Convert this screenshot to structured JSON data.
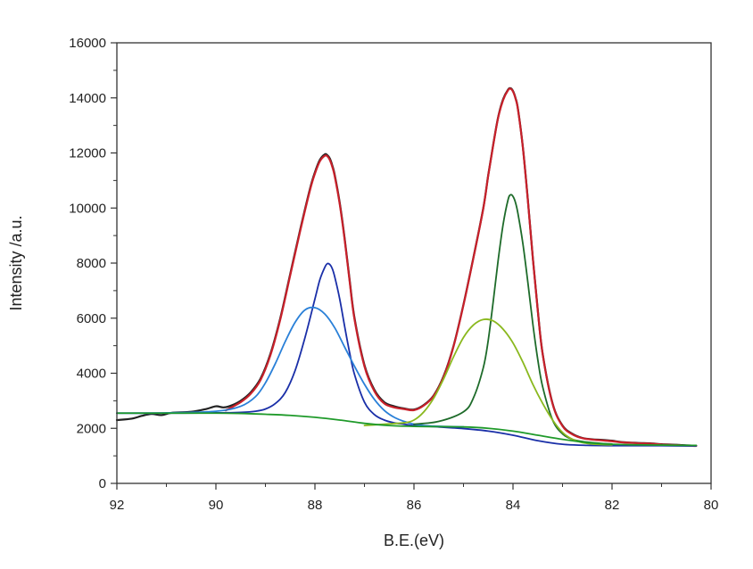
{
  "chart_data": {
    "type": "line",
    "title": "",
    "xlabel": "B.E.(eV)",
    "ylabel": "Intensity /a.u.",
    "xlim": [
      92,
      80
    ],
    "ylim": [
      0,
      16000
    ],
    "x_ticks": [
      92,
      90,
      88,
      86,
      84,
      82,
      80
    ],
    "y_ticks": [
      0,
      2000,
      4000,
      6000,
      8000,
      10000,
      12000,
      14000,
      16000
    ],
    "x_tick_labels": [
      "92",
      "90",
      "88",
      "86",
      "84",
      "82",
      "80"
    ],
    "y_tick_labels": [
      "0",
      "2000",
      "4000",
      "6000",
      "8000",
      "10000",
      "12000",
      "14000",
      "16000"
    ],
    "grid": false,
    "legend": "none",
    "series": [
      {
        "name": "raw-data",
        "color": "#222222",
        "x": [
          92.0,
          91.7,
          91.5,
          91.3,
          91.1,
          90.9,
          90.5,
          90.2,
          90.0,
          89.85,
          89.7,
          89.5,
          89.3,
          89.1,
          88.9,
          88.7,
          88.5,
          88.3,
          88.1,
          88.0,
          87.9,
          87.8,
          87.75,
          87.7,
          87.65,
          87.6,
          87.5,
          87.4,
          87.3,
          87.2,
          87.0,
          86.8,
          86.6,
          86.4,
          86.2,
          86.0,
          85.8,
          85.6,
          85.4,
          85.2,
          85.0,
          84.8,
          84.6,
          84.5,
          84.4,
          84.3,
          84.2,
          84.1,
          84.05,
          84.0,
          83.95,
          83.9,
          83.8,
          83.7,
          83.6,
          83.5,
          83.4,
          83.2,
          83.0,
          82.8,
          82.6,
          82.4,
          82.2,
          82.0,
          81.8,
          81.5,
          81.2,
          81.0,
          80.7,
          80.5,
          80.3
        ],
        "values": [
          2300,
          2350,
          2450,
          2520,
          2480,
          2560,
          2600,
          2700,
          2800,
          2760,
          2820,
          3000,
          3300,
          3800,
          4700,
          6000,
          7600,
          9200,
          10700,
          11300,
          11750,
          11950,
          11920,
          11800,
          11550,
          11200,
          10200,
          8900,
          7400,
          6000,
          4300,
          3400,
          2950,
          2800,
          2720,
          2680,
          2850,
          3200,
          3900,
          5000,
          6500,
          8200,
          10000,
          11200,
          12300,
          13300,
          13950,
          14300,
          14350,
          14250,
          14000,
          13600,
          12200,
          10300,
          8200,
          6300,
          4700,
          2900,
          2100,
          1800,
          1650,
          1600,
          1580,
          1550,
          1500,
          1470,
          1450,
          1420,
          1400,
          1380,
          1370
        ]
      },
      {
        "name": "envelope-fit",
        "color": "#c8202a",
        "x": [
          89.8,
          89.5,
          89.3,
          89.1,
          88.9,
          88.7,
          88.5,
          88.3,
          88.1,
          88.0,
          87.9,
          87.8,
          87.75,
          87.7,
          87.65,
          87.6,
          87.5,
          87.4,
          87.3,
          87.2,
          87.0,
          86.8,
          86.6,
          86.4,
          86.2,
          86.0,
          85.8,
          85.6,
          85.4,
          85.2,
          85.0,
          84.8,
          84.6,
          84.5,
          84.4,
          84.3,
          84.2,
          84.1,
          84.05,
          84.0,
          83.95,
          83.9,
          83.8,
          83.7,
          83.6,
          83.5,
          83.4,
          83.2,
          83.0,
          82.8,
          82.6,
          82.4,
          82.2,
          82.0,
          81.8,
          81.5,
          81.2,
          81.0,
          80.7,
          80.5,
          80.3
        ],
        "values": [
          2650,
          2950,
          3250,
          3750,
          4650,
          5950,
          7550,
          9150,
          10650,
          11250,
          11700,
          11900,
          11880,
          11750,
          11500,
          11150,
          10150,
          8850,
          7350,
          5950,
          4250,
          3350,
          2900,
          2760,
          2700,
          2660,
          2830,
          3180,
          3870,
          4980,
          6480,
          8180,
          9980,
          11180,
          12280,
          13280,
          13920,
          14280,
          14330,
          14230,
          13980,
          13580,
          12180,
          10280,
          8180,
          6280,
          4680,
          2880,
          2080,
          1780,
          1640,
          1590,
          1560,
          1530,
          1490,
          1460,
          1440,
          1410,
          1390,
          1370,
          1360
        ]
      },
      {
        "name": "peak-1-narrow",
        "color": "#1a2fa8",
        "x": [
          92.0,
          91.0,
          90.0,
          89.5,
          89.2,
          89.0,
          88.8,
          88.6,
          88.4,
          88.2,
          88.0,
          87.9,
          87.8,
          87.75,
          87.7,
          87.65,
          87.6,
          87.5,
          87.4,
          87.3,
          87.2,
          87.0,
          86.8,
          86.6,
          86.4,
          86.2,
          86.0,
          85.5,
          85.0,
          84.5,
          84.0,
          83.5,
          83.0,
          82.5,
          82.0,
          81.5,
          81.0,
          80.5,
          80.3
        ],
        "values": [
          2550,
          2550,
          2560,
          2580,
          2620,
          2700,
          2900,
          3300,
          4100,
          5300,
          6700,
          7400,
          7850,
          7980,
          7950,
          7800,
          7500,
          6700,
          5700,
          4750,
          3950,
          2950,
          2500,
          2300,
          2200,
          2150,
          2100,
          2050,
          1990,
          1900,
          1750,
          1550,
          1420,
          1380,
          1370,
          1370,
          1370,
          1360,
          1360
        ]
      },
      {
        "name": "peak-1-broad",
        "color": "#2a80d8",
        "x": [
          92.0,
          91.0,
          90.0,
          89.5,
          89.2,
          89.0,
          88.8,
          88.6,
          88.4,
          88.2,
          88.0,
          87.8,
          87.6,
          87.4,
          87.2,
          87.0,
          86.8,
          86.6,
          86.4,
          86.2,
          86.0,
          85.8,
          85.6,
          85.4,
          85.2,
          85.0
        ],
        "values": [
          2550,
          2560,
          2620,
          2800,
          3150,
          3650,
          4350,
          5150,
          5850,
          6300,
          6380,
          6150,
          5650,
          4950,
          4250,
          3600,
          3050,
          2650,
          2400,
          2250,
          2150,
          2100,
          2080,
          2070,
          2060,
          2050
        ]
      },
      {
        "name": "peak-2-narrow",
        "color": "#1e6b2a",
        "x": [
          86.0,
          85.5,
          85.0,
          84.8,
          84.6,
          84.5,
          84.4,
          84.3,
          84.2,
          84.1,
          84.05,
          84.0,
          83.95,
          83.9,
          83.8,
          83.7,
          83.6,
          83.5,
          83.4,
          83.2,
          83.0,
          82.8,
          82.6,
          82.4,
          82.2,
          82.0
        ],
        "values": [
          2150,
          2250,
          2600,
          3100,
          4200,
          5200,
          6600,
          8100,
          9400,
          10300,
          10480,
          10420,
          10200,
          9800,
          8700,
          7300,
          5800,
          4500,
          3500,
          2300,
          1800,
          1600,
          1520,
          1480,
          1450,
          1430
        ]
      },
      {
        "name": "peak-2-broad",
        "color": "#8ab81e",
        "x": [
          87.0,
          86.6,
          86.2,
          86.0,
          85.8,
          85.6,
          85.4,
          85.2,
          85.0,
          84.8,
          84.6,
          84.4,
          84.2,
          84.0,
          83.8,
          83.6,
          83.4,
          83.2,
          83.0,
          82.8,
          82.6,
          82.4,
          82.2,
          82.0
        ],
        "values": [
          2100,
          2150,
          2200,
          2300,
          2600,
          3100,
          3800,
          4600,
          5300,
          5750,
          5950,
          5900,
          5600,
          5100,
          4400,
          3600,
          2900,
          2300,
          1850,
          1600,
          1480,
          1430,
          1410,
          1400
        ]
      },
      {
        "name": "background",
        "color": "#1f9a2a",
        "x": [
          92.0,
          91.0,
          90.0,
          89.5,
          89.0,
          88.5,
          88.0,
          87.5,
          87.0,
          86.5,
          86.0,
          85.5,
          85.0,
          84.5,
          84.0,
          83.5,
          83.0,
          82.5,
          82.0,
          81.5,
          81.0,
          80.5,
          80.3
        ],
        "values": [
          2550,
          2550,
          2550,
          2540,
          2510,
          2470,
          2400,
          2300,
          2180,
          2100,
          2070,
          2060,
          2050,
          2000,
          1900,
          1750,
          1600,
          1480,
          1420,
          1400,
          1390,
          1380,
          1380
        ]
      }
    ]
  }
}
